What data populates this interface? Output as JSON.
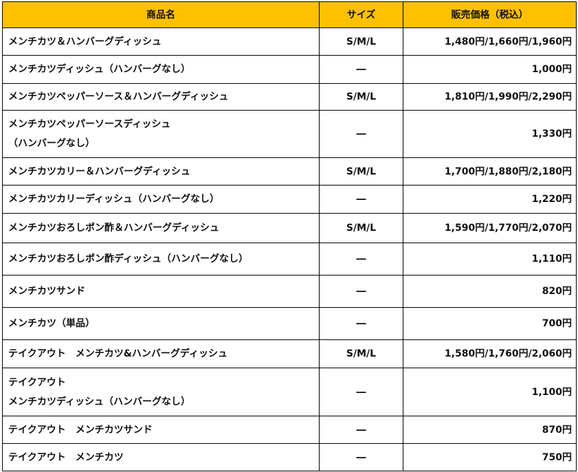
{
  "header": {
    "name": "商品名",
    "size": "サイズ",
    "price": "販売価格（税込）"
  },
  "header_color": "#FFC000",
  "rows": [
    {
      "name": [
        "メンチカツ＆ハンバーグディッシュ"
      ],
      "size": "S/M/L",
      "price": "1,480円/1,660円/1,960円"
    },
    {
      "name": [
        "メンチカツディッシュ（ハンバーグなし）"
      ],
      "size": "―",
      "price": "1,000円"
    },
    {
      "name": [
        "メンチカツペッパーソース＆ハンバーグディッシュ"
      ],
      "size": "S/M/L",
      "price": "1,810円/1,990円/2,290円"
    },
    {
      "name": [
        "メンチカツペッパーソースディッシュ",
        "（ハンバーグなし）"
      ],
      "size": "―",
      "price": "1,330円"
    },
    {
      "name": [
        "メンチカツカリー＆ハンバーグディッシュ"
      ],
      "size": "S/M/L",
      "price": "1,700円/1,880円/2,180円"
    },
    {
      "name": [
        "メンチカツカリーディッシュ（ハンバーグなし）"
      ],
      "size": "―",
      "price": "1,220円"
    },
    {
      "name": [
        "メンチカツおろしポン酢＆ハンバーグディッシュ"
      ],
      "size": "S/M/L",
      "price": "1,590円/1,770円/2,070円"
    },
    {
      "name": [
        "メンチカツおろしポン酢ディッシュ（ハンバーグなし）"
      ],
      "size": "―",
      "price": "1,110円"
    },
    {
      "name": [
        "メンチカツサンド"
      ],
      "size": "―",
      "price": "820円"
    },
    {
      "name": [
        "メンチカツ（単品）"
      ],
      "size": "―",
      "price": "700円"
    },
    {
      "name": [
        "テイクアウト　メンチカツ&ハンバーグディッシュ"
      ],
      "size": "S/M/L",
      "price": "1,580円/1,760円/2,060円"
    },
    {
      "name": [
        "テイクアウト",
        "メンチカツディッシュ（ハンバーグなし）"
      ],
      "size": "―",
      "price": "1,100円"
    },
    {
      "name": [
        "テイクアウト　メンチカツサンド"
      ],
      "size": "―",
      "price": "870円"
    },
    {
      "name": [
        "テイクアウト　メンチカツ"
      ],
      "size": "―",
      "price": "750円"
    }
  ]
}
